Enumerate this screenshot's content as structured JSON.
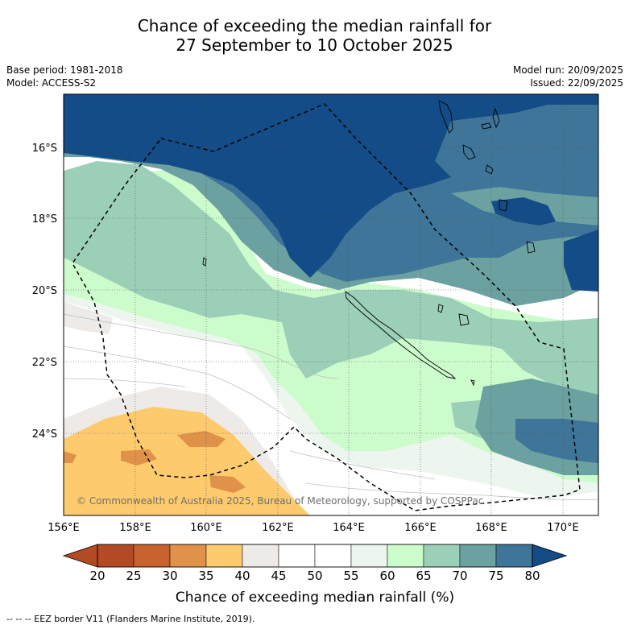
{
  "title": {
    "line1": "Chance of exceeding the median rainfall for",
    "line2": "27 September to 10 October 2025"
  },
  "meta": {
    "base_period": "Base period: 1981-2018",
    "model": "Model: ACCESS-S2",
    "model_run": "Model run: 20/09/2025",
    "issued": "Issued: 22/09/2025"
  },
  "map": {
    "lat_labels": [
      "16°S",
      "18°S",
      "20°S",
      "22°S",
      "24°S"
    ],
    "lon_labels": [
      "156°E",
      "158°E",
      "160°E",
      "162°E",
      "164°E",
      "166°E",
      "168°E",
      "170°E"
    ],
    "copyright": "© Commonwealth of Australia 2025, Bureau of Meteorology, supported by COSPPac"
  },
  "colorbar": {
    "ticks": [
      "20",
      "25",
      "30",
      "35",
      "40",
      "45",
      "50",
      "55",
      "60",
      "65",
      "70",
      "75",
      "80"
    ],
    "colors": [
      "#b24a24",
      "#c8622f",
      "#e0924a",
      "#fdcb6e",
      "#eeeae7",
      "#ffffff",
      "#ffffff",
      "#edf6ee",
      "#ccfccc",
      "#9bcfb8",
      "#6ba1a0",
      "#3e7598",
      "#134c86"
    ],
    "title": "Chance of exceeding median rainfall (%)"
  },
  "footer": {
    "eez_note": "--  --  -- EEZ border V11 (Flanders Marine Institute, 2019)."
  }
}
